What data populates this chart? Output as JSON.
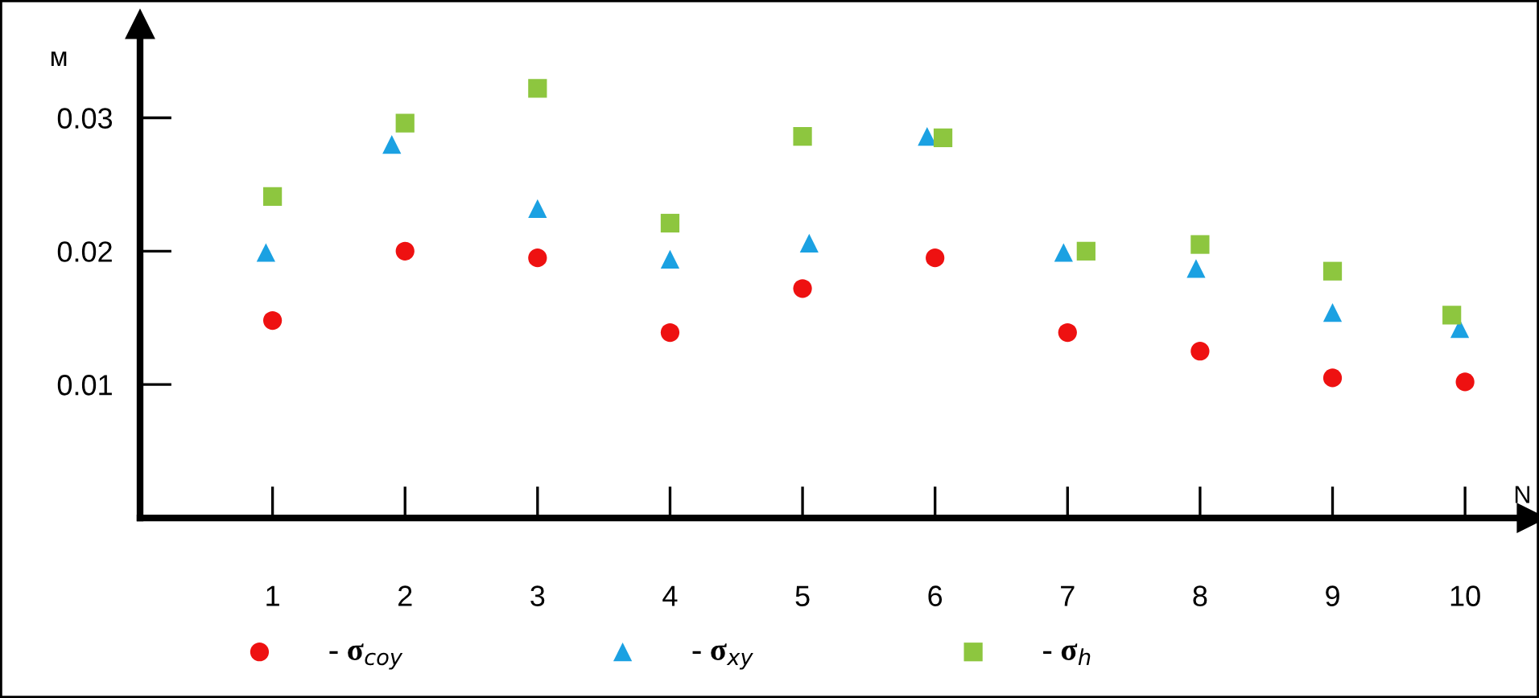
{
  "chart_data": {
    "type": "scatter",
    "ylabel": "м",
    "xlabel": "N",
    "xlim": [
      0,
      10.5
    ],
    "xticks": [
      1,
      2,
      3,
      4,
      5,
      6,
      7,
      8,
      9,
      10
    ],
    "ylim": [
      0,
      0.037
    ],
    "yticks": [
      0.01,
      0.02,
      0.03
    ],
    "grid": false,
    "legend": "bottom",
    "series": [
      {
        "name": "- σ$_{coy}$",
        "color": "#ee1111",
        "marker": "circle",
        "x": [
          1,
          2,
          3,
          4,
          5,
          6,
          7,
          8,
          9,
          10
        ],
        "values": [
          0.0148,
          0.02,
          0.0195,
          0.0139,
          0.0172,
          0.0195,
          0.0139,
          0.0125,
          0.0105,
          0.0102
        ]
      },
      {
        "name": "- σ$_{xy}$",
        "color": "#1ba1e2",
        "marker": "triangle",
        "x": [
          0.95,
          1.9,
          3,
          4,
          5.05,
          5.94,
          6.97,
          7.97,
          9,
          9.96
        ],
        "values": [
          0.0199,
          0.028,
          0.0232,
          0.0194,
          0.0206,
          0.0286,
          0.0199,
          0.0187,
          0.0154,
          0.0142
        ]
      },
      {
        "name": "- σ$_{h}$",
        "color": "#8dc63f",
        "marker": "square",
        "x": [
          1,
          2,
          3,
          4,
          5,
          6.06,
          7.14,
          8,
          9,
          9.9
        ],
        "values": [
          0.0241,
          0.0296,
          0.0322,
          0.0221,
          0.0286,
          0.0285,
          0.02,
          0.0205,
          0.0185,
          0.0152
        ]
      }
    ]
  }
}
